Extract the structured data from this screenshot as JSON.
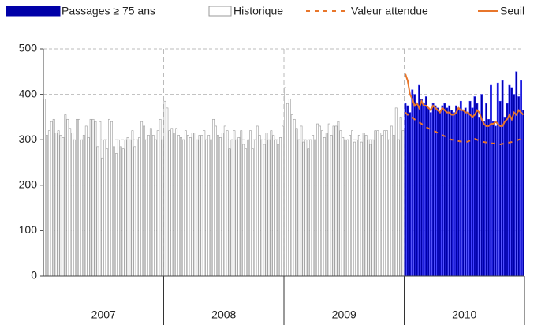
{
  "chart_data": {
    "type": "bar",
    "groups": [
      "2007",
      "2008",
      "2009",
      "2010"
    ],
    "ylim": [
      0,
      500
    ],
    "yticks": [
      0,
      100,
      200,
      300,
      400,
      500
    ],
    "grid": true,
    "series": [
      {
        "name": "Passages ≥ 75 ans",
        "type": "bar",
        "color": "#0000a8",
        "values": [
          null,
          null,
          null,
          null,
          null,
          null,
          null,
          null,
          null,
          null,
          null,
          null,
          null,
          null,
          null,
          null,
          null,
          null,
          null,
          null,
          null,
          null,
          null,
          null,
          null,
          null,
          null,
          null,
          null,
          null,
          null,
          null,
          null,
          null,
          null,
          null,
          null,
          null,
          null,
          null,
          null,
          null,
          null,
          null,
          null,
          null,
          null,
          null,
          null,
          null,
          null,
          null,
          null,
          null,
          null,
          null,
          null,
          null,
          null,
          null,
          null,
          null,
          null,
          null,
          null,
          null,
          null,
          null,
          null,
          null,
          null,
          null,
          null,
          null,
          null,
          null,
          null,
          null,
          null,
          null,
          null,
          null,
          null,
          null,
          null,
          null,
          null,
          null,
          null,
          null,
          null,
          null,
          null,
          null,
          null,
          null,
          null,
          null,
          null,
          null,
          null,
          null,
          null,
          null,
          null,
          null,
          null,
          null,
          null,
          null,
          null,
          null,
          null,
          null,
          null,
          null,
          null,
          null,
          null,
          null,
          null,
          null,
          null,
          null,
          null,
          null,
          null,
          null,
          null,
          null,
          null,
          null,
          null,
          null,
          null,
          null,
          null,
          null,
          null,
          null,
          null,
          null,
          null,
          null,
          null,
          null,
          null,
          null,
          null,
          null,
          null,
          null,
          null,
          null,
          null,
          null,
          380,
          375,
          360,
          410,
          400,
          380,
          420,
          390,
          380,
          395,
          370,
          360,
          380,
          375,
          370,
          360,
          375,
          380,
          370,
          375,
          365,
          360,
          375,
          370,
          385,
          365,
          370,
          360,
          385,
          370,
          395,
          380,
          350,
          400,
          340,
          380,
          345,
          420,
          340,
          330,
          425,
          385,
          430,
          350,
          380,
          420,
          415,
          400,
          450,
          395,
          430,
          365
        ]
      },
      {
        "name": "Historique",
        "type": "bar",
        "color": "#ffffff",
        "values": [
          390,
          310,
          320,
          340,
          345,
          315,
          320,
          310,
          305,
          355,
          345,
          325,
          315,
          300,
          345,
          345,
          300,
          310,
          330,
          305,
          345,
          345,
          340,
          285,
          340,
          260,
          300,
          280,
          345,
          340,
          285,
          270,
          300,
          285,
          280,
          300,
          305,
          300,
          320,
          285,
          300,
          305,
          340,
          330,
          300,
          310,
          325,
          310,
          300,
          320,
          345,
          300,
          385,
          370,
          320,
          325,
          315,
          325,
          310,
          305,
          300,
          320,
          310,
          305,
          315,
          315,
          300,
          310,
          310,
          320,
          300,
          310,
          300,
          345,
          330,
          310,
          305,
          315,
          330,
          320,
          280,
          300,
          320,
          300,
          305,
          320,
          290,
          280,
          300,
          320,
          280,
          300,
          330,
          310,
          300,
          290,
          315,
          300,
          320,
          310,
          300,
          290,
          305,
          330,
          415,
          380,
          390,
          355,
          345,
          325,
          300,
          330,
          295,
          300,
          280,
          300,
          310,
          300,
          335,
          330,
          320,
          305,
          315,
          335,
          310,
          330,
          330,
          340,
          320,
          305,
          300,
          300,
          310,
          320,
          295,
          300,
          310,
          295,
          315,
          310,
          300,
          290,
          300,
          320,
          320,
          315,
          310,
          320,
          320,
          300,
          330,
          310,
          370,
          300,
          350,
          320,
          null,
          null,
          null,
          null,
          null,
          null,
          null,
          null,
          null,
          null,
          null,
          null,
          null,
          null,
          null,
          null,
          null,
          null,
          null,
          null,
          null,
          null,
          null,
          null,
          null,
          null,
          null,
          null,
          null,
          null,
          null,
          null,
          null,
          null,
          null,
          null,
          null,
          null,
          null,
          null,
          null,
          null,
          null,
          null,
          null,
          null,
          null,
          null,
          null,
          null,
          null,
          null
        ]
      },
      {
        "name": "Valeur attendue",
        "type": "line",
        "dashed": true,
        "color": "#e8762b",
        "values": [
          null,
          null,
          null,
          null,
          null,
          null,
          null,
          null,
          null,
          null,
          null,
          null,
          null,
          null,
          null,
          null,
          null,
          null,
          null,
          null,
          null,
          null,
          null,
          null,
          null,
          null,
          null,
          null,
          null,
          null,
          null,
          null,
          null,
          null,
          null,
          null,
          null,
          null,
          null,
          null,
          null,
          null,
          null,
          null,
          null,
          null,
          null,
          null,
          null,
          null,
          null,
          null,
          null,
          null,
          null,
          null,
          null,
          null,
          null,
          null,
          null,
          null,
          null,
          null,
          null,
          null,
          null,
          null,
          null,
          null,
          null,
          null,
          null,
          null,
          null,
          null,
          null,
          null,
          null,
          null,
          null,
          null,
          null,
          null,
          null,
          null,
          null,
          null,
          null,
          null,
          null,
          null,
          null,
          null,
          null,
          null,
          null,
          null,
          null,
          null,
          null,
          null,
          null,
          null,
          null,
          null,
          null,
          null,
          null,
          null,
          null,
          null,
          null,
          null,
          null,
          null,
          null,
          null,
          null,
          null,
          null,
          null,
          null,
          null,
          null,
          null,
          null,
          null,
          null,
          null,
          null,
          null,
          null,
          null,
          null,
          null,
          null,
          null,
          null,
          null,
          null,
          null,
          null,
          null,
          null,
          null,
          null,
          null,
          null,
          null,
          null,
          null,
          null,
          null,
          null,
          null,
          360,
          355,
          352,
          350,
          345,
          340,
          338,
          335,
          330,
          328,
          325,
          322,
          320,
          318,
          315,
          312,
          310,
          308,
          305,
          302,
          300,
          300,
          298,
          297,
          296,
          295,
          295,
          296,
          298,
          300,
          302,
          300,
          298,
          296,
          295,
          294,
          293,
          292,
          292,
          291,
          290,
          290,
          291,
          292,
          293,
          294,
          295,
          296,
          298,
          300,
          302,
          305
        ]
      },
      {
        "name": "Seuil",
        "type": "line",
        "dashed": false,
        "color": "#e8762b",
        "values": [
          null,
          null,
          null,
          null,
          null,
          null,
          null,
          null,
          null,
          null,
          null,
          null,
          null,
          null,
          null,
          null,
          null,
          null,
          null,
          null,
          null,
          null,
          null,
          null,
          null,
          null,
          null,
          null,
          null,
          null,
          null,
          null,
          null,
          null,
          null,
          null,
          null,
          null,
          null,
          null,
          null,
          null,
          null,
          null,
          null,
          null,
          null,
          null,
          null,
          null,
          null,
          null,
          null,
          null,
          null,
          null,
          null,
          null,
          null,
          null,
          null,
          null,
          null,
          null,
          null,
          null,
          null,
          null,
          null,
          null,
          null,
          null,
          null,
          null,
          null,
          null,
          null,
          null,
          null,
          null,
          null,
          null,
          null,
          null,
          null,
          null,
          null,
          null,
          null,
          null,
          null,
          null,
          null,
          null,
          null,
          null,
          null,
          null,
          null,
          null,
          null,
          null,
          null,
          null,
          null,
          null,
          null,
          null,
          null,
          null,
          null,
          null,
          null,
          null,
          null,
          null,
          null,
          null,
          null,
          null,
          null,
          null,
          null,
          null,
          null,
          null,
          null,
          null,
          null,
          null,
          null,
          null,
          null,
          null,
          null,
          null,
          null,
          null,
          null,
          null,
          null,
          null,
          null,
          null,
          null,
          null,
          null,
          null,
          null,
          null,
          null,
          null,
          null,
          null,
          null,
          null,
          445,
          430,
          400,
          390,
          375,
          380,
          370,
          385,
          375,
          375,
          370,
          365,
          375,
          370,
          365,
          360,
          370,
          365,
          360,
          360,
          355,
          355,
          360,
          370,
          365,
          365,
          360,
          360,
          355,
          350,
          355,
          365,
          360,
          345,
          335,
          330,
          330,
          335,
          335,
          340,
          335,
          330,
          330,
          340,
          345,
          355,
          345,
          360,
          355,
          365,
          360,
          355
        ]
      }
    ]
  }
}
